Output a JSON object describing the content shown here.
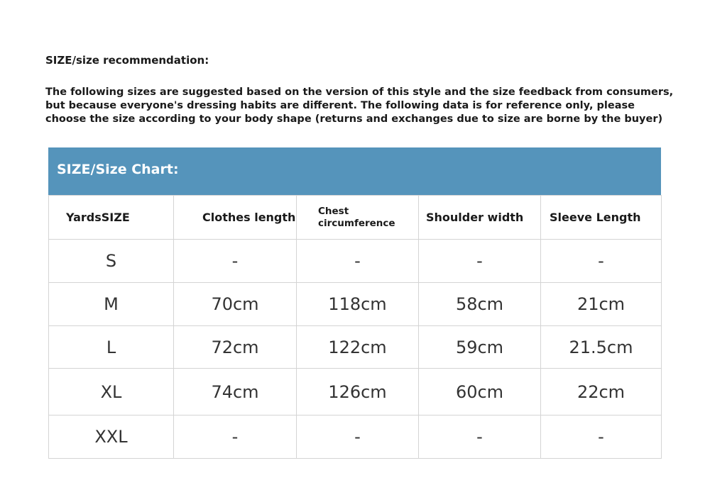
{
  "heading": "SIZE/size recommendation:",
  "intro_lines": [
    "The following sizes are suggested based on the version of this style and the size feedback from consumers,",
    "but because everyone's dressing habits are different. The following data is for reference only, please",
    "choose the size according to your body shape (returns and exchanges due to size are borne by the buyer)"
  ],
  "chart_title": "SIZE/Size Chart:",
  "accent_color": "#5594bb",
  "columns": [
    "YardsSIZE",
    "Clothes length",
    "Chest circumference",
    "Shoulder width",
    "Sleeve Length"
  ],
  "rows": [
    [
      "S",
      "-",
      "-",
      "-",
      "-"
    ],
    [
      "M",
      "70cm",
      "118cm",
      "58cm",
      "21cm"
    ],
    [
      "L",
      "72cm",
      "122cm",
      "59cm",
      "21.5cm"
    ],
    [
      "XL",
      "74cm",
      "126cm",
      "60cm",
      "22cm"
    ],
    [
      "XXL",
      "-",
      "-",
      "-",
      "-"
    ]
  ]
}
